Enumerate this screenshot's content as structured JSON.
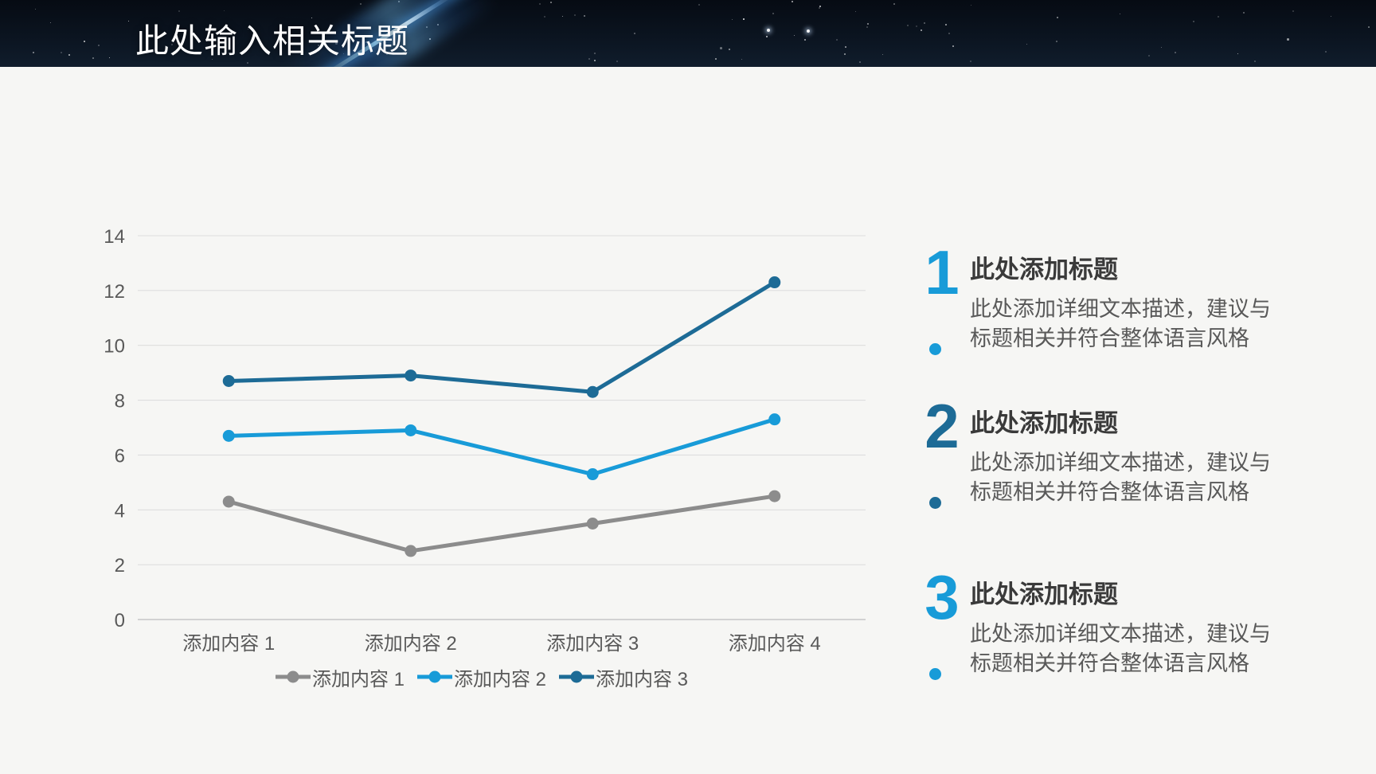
{
  "header": {
    "title": "此处输入相关标题"
  },
  "chart_data": {
    "type": "line",
    "title": "",
    "categories": [
      "添加内容 1",
      "添加内容 2",
      "添加内容 3",
      "添加内容 4"
    ],
    "series": [
      {
        "name": "添加内容 1",
        "color": "#8C8C8C",
        "values": [
          4.3,
          2.5,
          3.5,
          4.5
        ]
      },
      {
        "name": "添加内容 2",
        "color": "#189BD8",
        "values": [
          6.7,
          6.9,
          5.3,
          7.3
        ]
      },
      {
        "name": "添加内容 3",
        "color": "#1D6B96",
        "values": [
          8.7,
          8.9,
          8.3,
          12.3
        ]
      }
    ],
    "xlabel": "",
    "ylabel": "",
    "ylim": [
      0,
      14
    ],
    "ytick_step": 2,
    "grid": true,
    "legend_position": "bottom",
    "tick_label_color": "#595959",
    "gridline_color": "#DEDEDE",
    "baseline_color": "#C6C6C6"
  },
  "items": [
    {
      "number": "1",
      "title": "此处添加标题",
      "desc": "此处添加详细文本描述，建议与标题相关并符合整体语言风格",
      "accent": "#189BD8"
    },
    {
      "number": "2",
      "title": "此处添加标题",
      "desc": "此处添加详细文本描述，建议与标题相关并符合整体语言风格",
      "accent": "#1D6B96"
    },
    {
      "number": "3",
      "title": "此处添加标题",
      "desc": "此处添加详细文本描述，建议与标题相关并符合整体语言风格",
      "accent": "#189BD8"
    }
  ],
  "colors": {
    "accent_light": "#189BD8",
    "accent_dark": "#1D6B96",
    "series_gray": "#8C8C8C",
    "header_bg": "#0B1420",
    "body_bg": "#F6F6F4",
    "heading_text": "#3A3A3A",
    "body_text": "#595959"
  }
}
